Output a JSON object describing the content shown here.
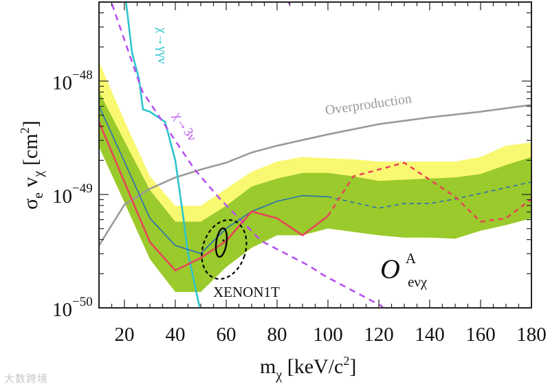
{
  "chart_data": {
    "type": "line",
    "x_scale": "linear",
    "y_scale": "log10",
    "y_values_are": "log10(sigma_e v_chi / cm^2)",
    "xlim": [
      10,
      180
    ],
    "ylim_log10": [
      -50,
      -47.3
    ],
    "grid": false,
    "xlabel": {
      "main": "m",
      "sub": "χ",
      "unit_pre": " [keV/c",
      "unit_sup": "2",
      "unit_post": "]"
    },
    "ylabel": {
      "sigma": "σ",
      "sub_e": "e",
      "v": " v",
      "sub_chi": "χ",
      "unit_pre": " [cm",
      "unit_sup": "2",
      "unit_post": "]"
    },
    "xticks": [
      "20",
      "40",
      "60",
      "80",
      "100",
      "120",
      "140",
      "160",
      "180"
    ],
    "xtick_values": [
      20,
      40,
      60,
      80,
      100,
      120,
      140,
      160,
      180
    ],
    "yticks": [
      {
        "base": "10",
        "exp": "−48",
        "value": -48
      },
      {
        "base": "10",
        "exp": "−49",
        "value": -49
      },
      {
        "base": "10",
        "exp": "−50",
        "value": -50
      }
    ],
    "x": [
      10,
      20,
      30,
      40,
      50,
      60,
      70,
      80,
      90,
      100,
      110,
      120,
      130,
      140,
      150,
      160,
      170,
      180
    ],
    "bands": {
      "yellow_upper": [
        -47.83,
        -48.35,
        -48.84,
        -49.1,
        -49.1,
        -48.95,
        -48.8,
        -48.71,
        -48.67,
        -48.68,
        -48.69,
        -48.71,
        -48.71,
        -48.71,
        -48.71,
        -48.67,
        -48.57,
        -48.54
      ],
      "green_upper": [
        -48.09,
        -48.53,
        -48.96,
        -49.24,
        -49.24,
        -49.1,
        -48.93,
        -48.86,
        -48.81,
        -48.81,
        -48.84,
        -48.88,
        -48.87,
        -48.86,
        -48.85,
        -48.82,
        -48.74,
        -48.67
      ],
      "green_lower": [
        -48.58,
        -49.07,
        -49.57,
        -49.86,
        -49.86,
        -49.64,
        -49.47,
        -49.36,
        -49.36,
        -49.3,
        -49.33,
        -49.36,
        -49.38,
        -49.38,
        -49.39,
        -49.32,
        -49.27,
        -49.21
      ],
      "yellow_color": "#f9f871",
      "green_color": "#9aca2c"
    },
    "series": [
      {
        "name": "expected (median)",
        "color": "#2a6db5",
        "solid_until": 100,
        "values": [
          -48.22,
          -48.71,
          -49.21,
          -49.45,
          -49.52,
          -49.3,
          -49.15,
          -49.06,
          -49.01,
          -49.02,
          -49.07,
          -49.12,
          -49.08,
          -49.08,
          -49.04,
          -48.99,
          -48.94,
          -48.89
        ]
      },
      {
        "name": "observed limit",
        "color": "#e8445a",
        "solid_until": 100,
        "values": [
          -48.36,
          -48.89,
          -49.42,
          -49.67,
          -49.56,
          -49.41,
          -49.15,
          -49.21,
          -49.36,
          -49.19,
          -48.84,
          -48.78,
          -48.72,
          -48.87,
          -49.02,
          -49.24,
          -49.21,
          -49.04
        ]
      }
    ],
    "curves": [
      {
        "name": "Overproduction",
        "label": "Overproduction",
        "color": "#9a9a9a",
        "style": "solid",
        "x": [
          10,
          20,
          30,
          40,
          50,
          60,
          70,
          80,
          90,
          100,
          120,
          140,
          160,
          180
        ],
        "y": [
          -49.45,
          -49.09,
          -48.95,
          -48.85,
          -48.78,
          -48.72,
          -48.63,
          -48.57,
          -48.52,
          -48.47,
          -48.38,
          -48.32,
          -48.27,
          -48.21
        ]
      },
      {
        "name": "chi-to-gamma-gamma-nu",
        "label": "χ→γγν",
        "color": "#2cc4cc",
        "style": "solid",
        "x": [
          20.5,
          23,
          25.7,
          27.3,
          30,
          36,
          40,
          43.2,
          44.9,
          49.5
        ],
        "y": [
          -47.28,
          -47.75,
          -47.98,
          -48.25,
          -48.27,
          -48.36,
          -48.7,
          -49.21,
          -49.51,
          -49.99
        ]
      },
      {
        "name": "chi-to-3nu",
        "label": "χ→3ν",
        "color": "#b94ff0",
        "style": "dashed",
        "x": [
          15.1,
          27,
          47.6,
          57.6,
          73.8,
          92.7,
          98.1,
          121.6
        ],
        "y": [
          -47.32,
          -48.09,
          -48.78,
          -49.04,
          -49.41,
          -49.63,
          -49.71,
          -49.99
        ]
      },
      {
        "name": "chi-to-3nu-upper-segment",
        "label": "",
        "color": "#b94ff0",
        "style": "dashed",
        "x": [
          83.8,
          85.1
        ],
        "y": [
          -47.27,
          -47.34
        ]
      }
    ],
    "xenon1t": {
      "label": "XENON1T",
      "center_x": 58.1,
      "center_y": -49.42
    },
    "operator_label": {
      "O": "O",
      "sup": "A",
      "sub": "eνχ"
    }
  },
  "watermark": "大数跨境"
}
